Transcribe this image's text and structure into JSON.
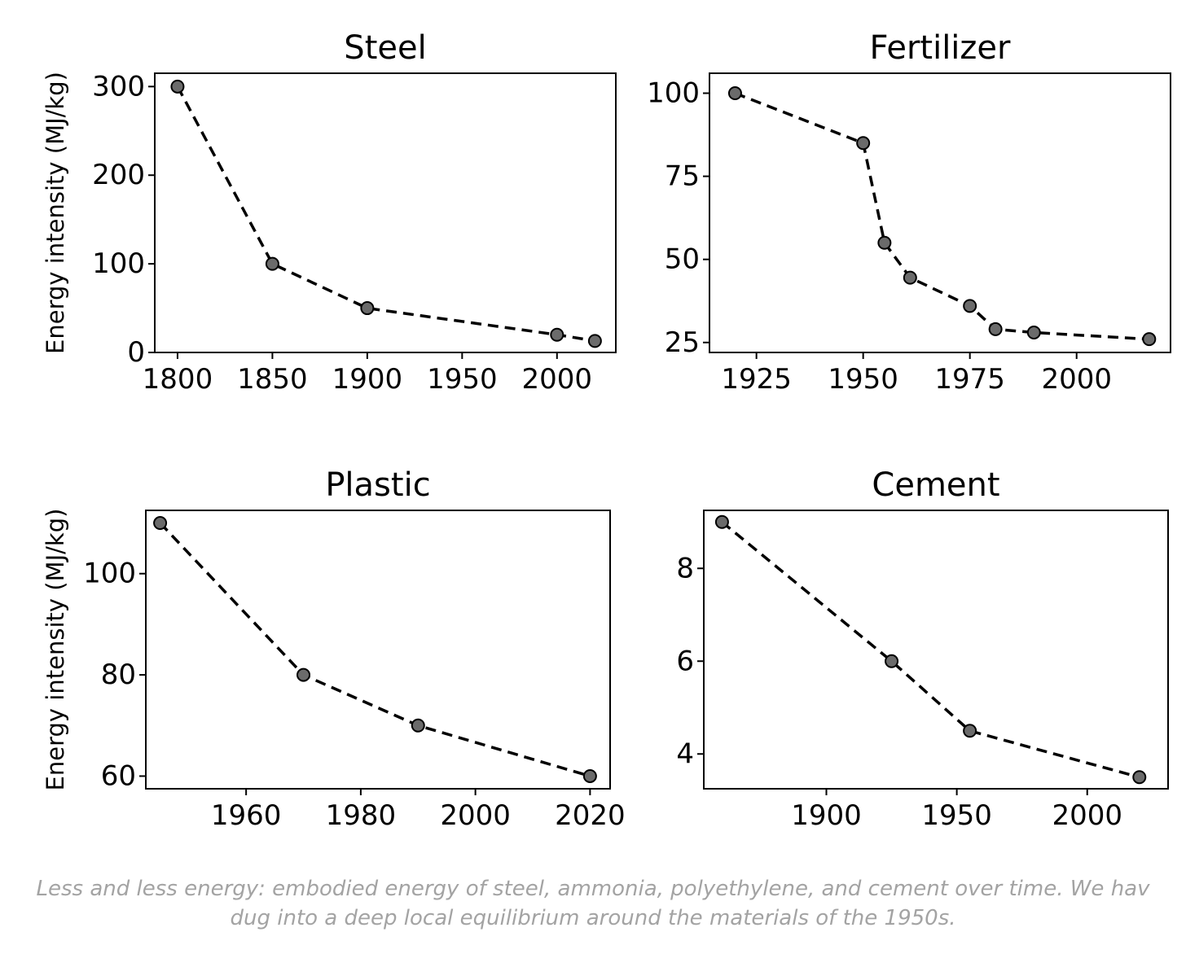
{
  "caption": {
    "line1": "Less and less energy: embodied energy of steel, ammonia, polyethylene, and cement over time. We hav",
    "line2": "dug into a deep local equilibrium around the materials of the 1950s."
  },
  "chart_data": [
    {
      "type": "line",
      "title": "Steel",
      "ylabel": "Energy intensity (MJ/kg)",
      "xlim": [
        1788,
        2031
      ],
      "ylim": [
        0,
        315
      ],
      "xticks": [
        1800,
        1850,
        1900,
        1950,
        2000
      ],
      "yticks": [
        0,
        100,
        200,
        300
      ],
      "x": [
        1800,
        1850,
        1900,
        2000,
        2020
      ],
      "y": [
        300,
        100,
        50,
        20,
        13
      ]
    },
    {
      "type": "line",
      "title": "Fertilizer",
      "ylabel": "",
      "xlim": [
        1914,
        2022
      ],
      "ylim": [
        22,
        106
      ],
      "xticks": [
        1925,
        1950,
        1975,
        2000
      ],
      "yticks": [
        25,
        50,
        75,
        100
      ],
      "x": [
        1920,
        1950,
        1955,
        1961,
        1975,
        1981,
        1990,
        2017
      ],
      "y": [
        100,
        85,
        55,
        44.5,
        36,
        29,
        28,
        26
      ]
    },
    {
      "type": "line",
      "title": "Plastic",
      "ylabel": "Energy intensity (MJ/kg)",
      "xlim": [
        1942.5,
        2023.5
      ],
      "ylim": [
        57.5,
        112.5
      ],
      "xticks": [
        1960,
        1980,
        2000,
        2020
      ],
      "yticks": [
        60,
        80,
        100
      ],
      "x": [
        1945,
        1970,
        1990,
        2020
      ],
      "y": [
        110,
        80,
        70,
        60
      ]
    },
    {
      "type": "line",
      "title": "Cement",
      "ylabel": "",
      "xlim": [
        1853,
        2031
      ],
      "ylim": [
        3.25,
        9.25
      ],
      "xticks": [
        1900,
        1950,
        2000
      ],
      "yticks": [
        4,
        6,
        8
      ],
      "x": [
        1860,
        1925,
        1955,
        2020
      ],
      "y": [
        9,
        6,
        4.5,
        3.5
      ]
    }
  ]
}
